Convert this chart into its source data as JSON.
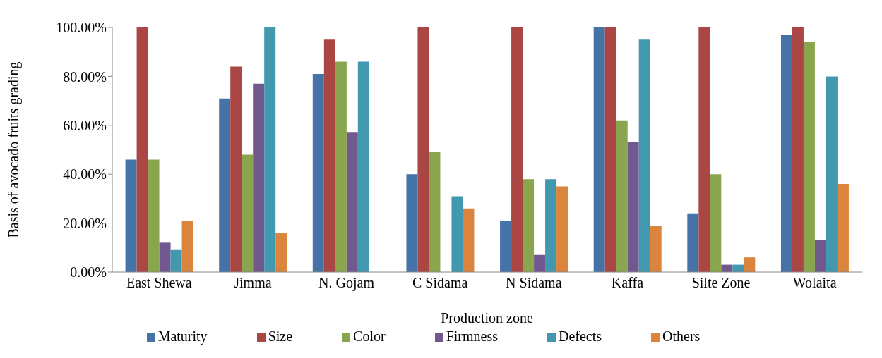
{
  "chart_data": {
    "type": "bar",
    "xlabel": "Production zone",
    "ylabel": "Basis of avocado fruits grading",
    "categories": [
      "East Shewa",
      "Jimma",
      "N. Gojam",
      "C Sidama",
      "N Sidama",
      "Kaffa",
      "Silte Zone",
      "Wolaita"
    ],
    "series": [
      {
        "name": "Maturity",
        "color": "#4572a7",
        "values": [
          46,
          71,
          81,
          40,
          21,
          100,
          24,
          97
        ]
      },
      {
        "name": "Size",
        "color": "#aa4643",
        "values": [
          100,
          84,
          95,
          100,
          100,
          100,
          100,
          100
        ]
      },
      {
        "name": "Color",
        "color": "#89a54e",
        "values": [
          46,
          48,
          86,
          49,
          38,
          62,
          40,
          94
        ]
      },
      {
        "name": "Firmness",
        "color": "#71588f",
        "values": [
          12,
          77,
          57,
          0,
          7,
          53,
          3,
          13
        ]
      },
      {
        "name": "Defects",
        "color": "#4198af",
        "values": [
          9,
          100,
          86,
          31,
          38,
          95,
          3,
          80
        ]
      },
      {
        "name": "Others",
        "color": "#db843d",
        "values": [
          21,
          16,
          0,
          26,
          35,
          19,
          6,
          36
        ]
      }
    ],
    "ylim": [
      0,
      100
    ],
    "yticks": [
      {
        "value": 0,
        "label": "0.00%"
      },
      {
        "value": 20,
        "label": "20.00%"
      },
      {
        "value": 40,
        "label": "40.00%"
      },
      {
        "value": 60,
        "label": "60.00%"
      },
      {
        "value": 80,
        "label": "80.00%"
      },
      {
        "value": 100,
        "label": "100.00%"
      }
    ],
    "grid": false,
    "legend": "bottom"
  }
}
